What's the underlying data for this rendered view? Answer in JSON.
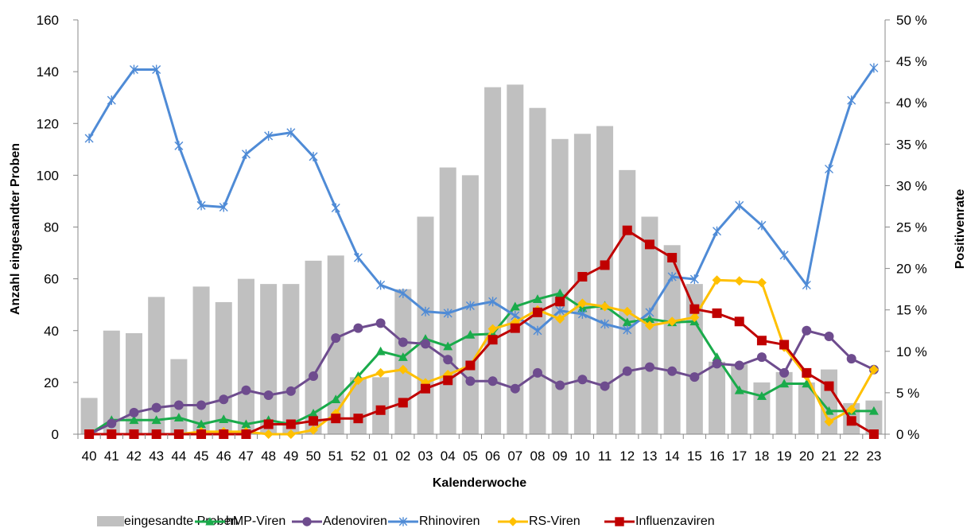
{
  "chart_data": {
    "type": "bar+line",
    "title": "",
    "xlabel": "Kalenderwoche",
    "ylabel_left": "Anzahl eingesandter Proben",
    "ylabel_right": "Positivenrate",
    "ylim_left": [
      0,
      160
    ],
    "yticks_left": [
      "0",
      "20",
      "40",
      "60",
      "80",
      "100",
      "120",
      "140",
      "160"
    ],
    "ylim_right": [
      0,
      50
    ],
    "yticks_right": [
      "0 %",
      "5 %",
      "10 %",
      "15 %",
      "20 %",
      "25 %",
      "30 %",
      "35 %",
      "40 %",
      "45 %",
      "50 %"
    ],
    "categories": [
      "40",
      "41",
      "42",
      "43",
      "44",
      "45",
      "46",
      "47",
      "48",
      "49",
      "50",
      "51",
      "52",
      "01",
      "02",
      "03",
      "04",
      "05",
      "06",
      "07",
      "08",
      "09",
      "10",
      "11",
      "12",
      "13",
      "14",
      "15",
      "16",
      "17",
      "18",
      "19",
      "20",
      "21",
      "22",
      "23"
    ],
    "bars": {
      "name": "eingesandte Proben",
      "color": "#c0c0c0",
      "values": [
        14,
        40,
        39,
        53,
        29,
        57,
        51,
        60,
        58,
        58,
        67,
        69,
        22,
        22,
        56,
        84,
        103,
        100,
        134,
        135,
        126,
        114,
        116,
        119,
        102,
        84,
        73,
        58,
        28,
        27,
        20,
        24,
        20,
        25,
        12,
        13
      ]
    },
    "series": [
      {
        "name": "hMP-Viren",
        "color": "#1aab4b",
        "marker": "triangle",
        "values": [
          0,
          1.7,
          1.7,
          1.7,
          2,
          1.2,
          1.8,
          1.2,
          1.7,
          1.2,
          2.5,
          4.2,
          7,
          10,
          9.3,
          11.5,
          10.6,
          12,
          12.1,
          15.4,
          16.3,
          17,
          15.2,
          15.5,
          13.5,
          13.9,
          13.5,
          13.6,
          9.3,
          5.3,
          4.6,
          6.1,
          6.1,
          2.8,
          2.8,
          2.8
        ]
      },
      {
        "name": "Adenoviren",
        "color": "#6e4c8e",
        "marker": "circle",
        "values": [
          0,
          1.3,
          2.6,
          3.2,
          3.5,
          3.5,
          4.2,
          5.3,
          4.7,
          5.2,
          7,
          11.6,
          12.8,
          13.4,
          11.1,
          10.9,
          9,
          6.4,
          6.4,
          5.5,
          7.4,
          5.9,
          6.6,
          5.8,
          7.6,
          8.1,
          7.6,
          6.9,
          8.5,
          8.3,
          9.3,
          7.4,
          12.5,
          11.8,
          9.1,
          7.8
        ]
      },
      {
        "name": "Rhinoviren",
        "color": "#4f8bd6",
        "marker": "star",
        "values": [
          35.7,
          40.3,
          44,
          44,
          34.8,
          27.6,
          27.4,
          33.8,
          36,
          36.4,
          33.5,
          27.3,
          21.3,
          18,
          17,
          14.8,
          14.6,
          15.5,
          16,
          14.3,
          12.5,
          14.9,
          14.5,
          13.3,
          12.6,
          14.7,
          19,
          18.7,
          24.5,
          27.6,
          25.2,
          21.6,
          18,
          32,
          40.3,
          44.2
        ]
      },
      {
        "name": "RS-Viren",
        "color": "#ffc000",
        "marker": "diamond",
        "values": [
          0,
          0,
          0,
          0,
          0,
          0.3,
          0.3,
          0.3,
          0,
          0,
          0.5,
          2.5,
          6.5,
          7.4,
          7.8,
          6.2,
          7.2,
          8.3,
          12.7,
          13.5,
          15,
          13.9,
          15.8,
          15.4,
          14.8,
          13.1,
          13.6,
          14.1,
          18.6,
          18.5,
          18.3,
          10.5,
          7,
          1.5,
          3,
          7.8
        ]
      },
      {
        "name": "Influenzaviren",
        "color": "#c00000",
        "marker": "square",
        "values": [
          0,
          0,
          0,
          0,
          0,
          0,
          0,
          0,
          1.2,
          1.2,
          1.6,
          1.9,
          1.9,
          2.9,
          3.8,
          5.5,
          6.5,
          8.3,
          11.4,
          12.8,
          14.7,
          16,
          19,
          20.4,
          24.6,
          22.9,
          21.3,
          15.1,
          14.6,
          13.6,
          11.3,
          10.8,
          7.4,
          5.8,
          1.6,
          0
        ]
      }
    ],
    "legend_position": "bottom",
    "grid": false
  }
}
